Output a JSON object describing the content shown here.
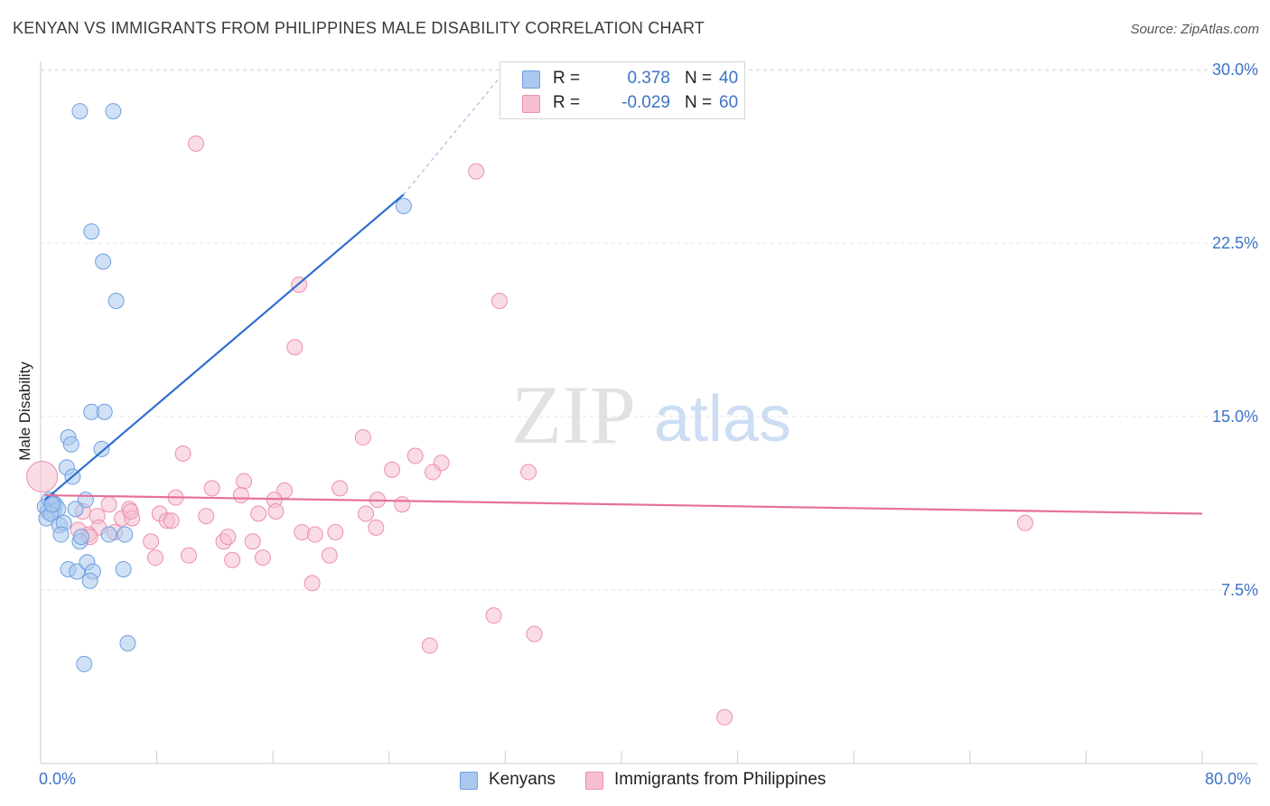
{
  "header": {
    "title": "KENYAN VS IMMIGRANTS FROM PHILIPPINES MALE DISABILITY CORRELATION CHART",
    "source": "Source: ZipAtlas.com"
  },
  "watermark": {
    "zip": "ZIP",
    "atlas": "atlas"
  },
  "legend": {
    "r_label": "R =",
    "n_label": "N =",
    "series": [
      {
        "name": "Kenyans",
        "r": "0.378",
        "n": "40",
        "fill": "#aac8ee",
        "stroke": "#6f9fe0"
      },
      {
        "name": "Immigrants from Philippines",
        "r": "-0.029",
        "n": "60",
        "fill": "#f6bfd0",
        "stroke": "#ec8fae"
      }
    ]
  },
  "colors": {
    "accent": "#3d73c8",
    "blue_line": "#2f6fd0",
    "pink_line": "#e6709c",
    "grid": "#e6e6e6",
    "axis": "#cccccc"
  },
  "chart_data": {
    "type": "scatter",
    "title": "KENYAN VS IMMIGRANTS FROM PHILIPPINES MALE DISABILITY CORRELATION CHART",
    "xlabel": "",
    "ylabel": "Male Disability",
    "xlim": [
      0,
      80
    ],
    "ylim": [
      0,
      31
    ],
    "x_tick_labels": [
      "0.0%",
      "80.0%"
    ],
    "y_ticks": [
      7.5,
      15.0,
      22.5,
      30.0
    ],
    "y_tick_labels": [
      "7.5%",
      "15.0%",
      "22.5%",
      "30.0%"
    ],
    "grid": true,
    "legend_position": "top-center",
    "series": [
      {
        "name": "Kenyans",
        "r": 0.378,
        "n": 40,
        "trend": {
          "x": [
            0.3,
            25.0
          ],
          "y": [
            11.4,
            24.6
          ],
          "dashed_extension_to": [
            31.8,
            29.8
          ]
        },
        "points": [
          [
            2.7,
            28.2
          ],
          [
            5.0,
            28.2
          ],
          [
            25.0,
            24.1
          ],
          [
            3.5,
            23.0
          ],
          [
            4.3,
            21.7
          ],
          [
            5.2,
            20.0
          ],
          [
            3.5,
            15.2
          ],
          [
            4.4,
            15.2
          ],
          [
            1.9,
            14.1
          ],
          [
            2.1,
            13.8
          ],
          [
            4.2,
            13.6
          ],
          [
            1.8,
            12.8
          ],
          [
            2.2,
            12.4
          ],
          [
            0.3,
            11.1
          ],
          [
            0.6,
            11.4
          ],
          [
            0.8,
            11.3
          ],
          [
            1.0,
            11.2
          ],
          [
            0.5,
            10.9
          ],
          [
            0.9,
            10.9
          ],
          [
            1.2,
            11.0
          ],
          [
            3.1,
            11.4
          ],
          [
            0.4,
            10.6
          ],
          [
            0.7,
            10.8
          ],
          [
            1.3,
            10.3
          ],
          [
            1.6,
            10.4
          ],
          [
            2.4,
            11.0
          ],
          [
            1.4,
            9.9
          ],
          [
            2.7,
            9.6
          ],
          [
            2.8,
            9.8
          ],
          [
            4.7,
            9.9
          ],
          [
            5.8,
            9.9
          ],
          [
            1.9,
            8.4
          ],
          [
            2.5,
            8.3
          ],
          [
            3.2,
            8.7
          ],
          [
            3.6,
            8.3
          ],
          [
            5.7,
            8.4
          ],
          [
            3.4,
            7.9
          ],
          [
            6.0,
            5.2
          ],
          [
            3.0,
            4.3
          ],
          [
            0.8,
            11.2
          ]
        ]
      },
      {
        "name": "Immigrants from Philippines",
        "r": -0.029,
        "n": 60,
        "trend": {
          "x": [
            0.3,
            80.0
          ],
          "y": [
            11.6,
            10.8
          ]
        },
        "points": [
          [
            0.1,
            12.4
          ],
          [
            10.7,
            26.8
          ],
          [
            30.0,
            25.6
          ],
          [
            17.8,
            20.7
          ],
          [
            31.6,
            20.0
          ],
          [
            17.5,
            18.0
          ],
          [
            22.2,
            14.1
          ],
          [
            9.8,
            13.4
          ],
          [
            25.8,
            13.3
          ],
          [
            27.6,
            13.0
          ],
          [
            24.2,
            12.7
          ],
          [
            27.0,
            12.6
          ],
          [
            33.6,
            12.6
          ],
          [
            14.0,
            12.2
          ],
          [
            11.8,
            11.9
          ],
          [
            16.8,
            11.8
          ],
          [
            20.6,
            11.9
          ],
          [
            9.3,
            11.5
          ],
          [
            13.8,
            11.6
          ],
          [
            16.1,
            11.4
          ],
          [
            23.2,
            11.4
          ],
          [
            24.9,
            11.2
          ],
          [
            4.7,
            11.2
          ],
          [
            6.1,
            11.0
          ],
          [
            8.2,
            10.8
          ],
          [
            11.4,
            10.7
          ],
          [
            15.0,
            10.8
          ],
          [
            22.4,
            10.8
          ],
          [
            2.9,
            10.9
          ],
          [
            3.9,
            10.7
          ],
          [
            5.6,
            10.6
          ],
          [
            6.3,
            10.6
          ],
          [
            8.7,
            10.5
          ],
          [
            4.0,
            10.2
          ],
          [
            2.6,
            10.1
          ],
          [
            3.3,
            9.9
          ],
          [
            5.1,
            10.0
          ],
          [
            18.0,
            10.0
          ],
          [
            18.9,
            9.9
          ],
          [
            20.3,
            10.0
          ],
          [
            23.1,
            10.2
          ],
          [
            16.2,
            10.9
          ],
          [
            7.6,
            9.6
          ],
          [
            12.6,
            9.6
          ],
          [
            12.9,
            9.8
          ],
          [
            7.9,
            8.9
          ],
          [
            10.2,
            9.0
          ],
          [
            13.2,
            8.8
          ],
          [
            15.3,
            8.9
          ],
          [
            19.9,
            9.0
          ],
          [
            18.7,
            7.8
          ],
          [
            31.2,
            6.4
          ],
          [
            34.0,
            5.6
          ],
          [
            26.8,
            5.1
          ],
          [
            47.1,
            2.0
          ],
          [
            67.8,
            10.4
          ],
          [
            3.4,
            9.8
          ],
          [
            9.0,
            10.5
          ],
          [
            6.2,
            10.9
          ],
          [
            14.6,
            9.6
          ]
        ]
      }
    ]
  }
}
